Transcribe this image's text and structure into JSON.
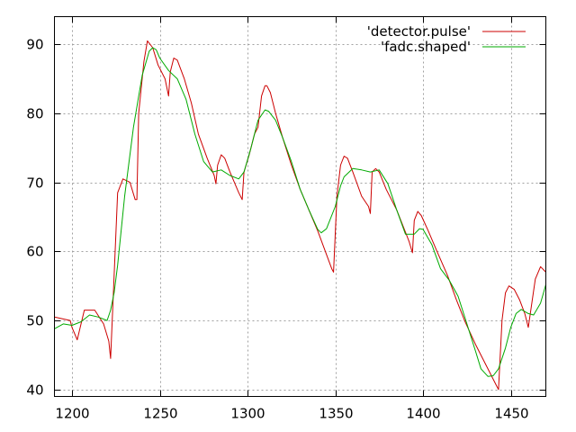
{
  "chart_data": {
    "type": "line",
    "title": "",
    "xlabel": "",
    "ylabel": "",
    "xlim": [
      1190,
      1470
    ],
    "ylim": [
      39,
      94
    ],
    "x_ticks": [
      1200,
      1250,
      1300,
      1350,
      1400,
      1450
    ],
    "x_tick_labels": [
      "1200",
      "1250",
      "1300",
      "1350",
      "1400",
      "1450"
    ],
    "y_ticks": [
      40,
      50,
      60,
      70,
      80,
      90
    ],
    "y_tick_labels": [
      "40",
      "50",
      "60",
      "70",
      "80",
      "90"
    ],
    "grid": true,
    "legend_position": "top-right",
    "series": [
      {
        "name": "'detector.pulse'",
        "color": "#cc0000",
        "x": [
          1190,
          1199,
          1200,
          1203,
          1207,
          1213,
          1218,
          1221,
          1222,
          1226,
          1229,
          1233,
          1236,
          1237,
          1238,
          1241,
          1243,
          1246,
          1249,
          1253,
          1255,
          1256,
          1258,
          1260,
          1264,
          1268,
          1272,
          1277,
          1281,
          1282,
          1283,
          1285,
          1287,
          1290,
          1295,
          1297,
          1298,
          1301,
          1304,
          1306,
          1308,
          1310,
          1311,
          1313,
          1316,
          1320,
          1325,
          1330,
          1340,
          1348,
          1349,
          1351,
          1353,
          1355,
          1357,
          1360,
          1365,
          1369,
          1370,
          1371,
          1373,
          1375,
          1379,
          1385,
          1392,
          1394,
          1395,
          1397,
          1399,
          1403,
          1408,
          1414,
          1419,
          1424,
          1430,
          1436,
          1442,
          1443,
          1445,
          1447,
          1449,
          1452,
          1455,
          1458,
          1460,
          1464,
          1467,
          1470
        ],
        "y": [
          50.5,
          50.0,
          49.0,
          47.2,
          51.5,
          51.5,
          49.5,
          47.0,
          44.5,
          68.5,
          70.5,
          70.0,
          67.5,
          67.5,
          80,
          87.5,
          90.5,
          89.5,
          87.0,
          85.0,
          82.5,
          86.0,
          88.0,
          87.7,
          85.0,
          81.5,
          77.0,
          73.5,
          71.0,
          69.8,
          72.5,
          74.0,
          73.5,
          71.5,
          68.5,
          67.5,
          71.5,
          74.0,
          77.0,
          78.0,
          82.5,
          84.0,
          84.0,
          83.0,
          80.0,
          76.5,
          72.5,
          69.0,
          63.0,
          57.5,
          57.0,
          68.0,
          72.5,
          73.8,
          73.5,
          71.5,
          68.0,
          66.5,
          65.5,
          71.5,
          72.0,
          71.5,
          69.0,
          66.0,
          61.5,
          59.8,
          64.5,
          65.8,
          65.2,
          63.0,
          60.0,
          56.5,
          53.0,
          49.8,
          46.5,
          43.5,
          40.5,
          40.0,
          50.0,
          54.0,
          55.0,
          54.5,
          53.0,
          51.0,
          49.0,
          56.0,
          57.8,
          57.0
        ]
      },
      {
        "name": "'fadc.shaped'",
        "color": "#00aa00",
        "x": [
          1190,
          1195,
          1200,
          1205,
          1210,
          1215,
          1220,
          1222,
          1224,
          1226,
          1230,
          1235,
          1240,
          1244,
          1246,
          1248,
          1250,
          1255,
          1260,
          1265,
          1270,
          1275,
          1280,
          1285,
          1290,
          1295,
          1298,
          1302,
          1306,
          1310,
          1312,
          1316,
          1320,
          1325,
          1330,
          1335,
          1340,
          1342,
          1345,
          1350,
          1353,
          1355,
          1360,
          1365,
          1370,
          1375,
          1380,
          1385,
          1390,
          1395,
          1398,
          1400,
          1405,
          1410,
          1415,
          1420,
          1425,
          1430,
          1433,
          1437,
          1440,
          1443,
          1447,
          1450,
          1453,
          1456,
          1460,
          1463,
          1467,
          1470
        ],
        "y": [
          48.8,
          49.5,
          49.3,
          49.8,
          50.8,
          50.5,
          50.0,
          51.5,
          54.0,
          58.0,
          68.0,
          78.0,
          85.5,
          89.0,
          89.5,
          89.2,
          88.0,
          86.2,
          85.0,
          82.0,
          77.0,
          73.0,
          71.5,
          71.8,
          71.0,
          70.5,
          71.5,
          75.0,
          79.0,
          80.5,
          80.3,
          79.0,
          76.5,
          73.0,
          69.0,
          66.0,
          63.2,
          62.7,
          63.3,
          66.5,
          69.5,
          70.8,
          72.0,
          71.8,
          71.5,
          71.8,
          69.8,
          66.0,
          62.5,
          62.5,
          63.3,
          63.2,
          61.0,
          57.5,
          55.8,
          53.5,
          49.5,
          45.5,
          43.0,
          41.9,
          42.0,
          43.0,
          46.0,
          49.0,
          51.0,
          51.6,
          51.0,
          50.8,
          52.5,
          55.2
        ]
      }
    ]
  }
}
